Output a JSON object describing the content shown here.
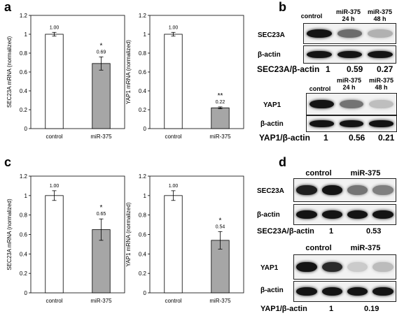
{
  "panel_letters": {
    "a": "a",
    "b": "b",
    "c": "c",
    "d": "d"
  },
  "chart_data": [
    {
      "id": "a1",
      "type": "bar",
      "categories": [
        "control",
        "miR-375"
      ],
      "values": [
        1.0,
        0.69
      ],
      "errors": [
        0.02,
        0.07
      ],
      "value_labels": [
        "1.00",
        "0.69"
      ],
      "sig": [
        "",
        "*"
      ],
      "ylabel": "SEC23A mRNA (normalized)",
      "ylim": [
        0,
        1.2
      ],
      "yticks": [
        "0",
        "0.2",
        "0.4",
        "0.6",
        "0.8",
        "1",
        "1.2"
      ],
      "colors": [
        "#ffffff",
        "#a6a6a6"
      ]
    },
    {
      "id": "a2",
      "type": "bar",
      "categories": [
        "control",
        "miR-375"
      ],
      "values": [
        1.0,
        0.22
      ],
      "errors": [
        0.02,
        0.01
      ],
      "value_labels": [
        "1.00",
        "0.22"
      ],
      "sig": [
        "",
        "**"
      ],
      "ylabel": "YAP1 mRNA (normalized)",
      "ylim": [
        0,
        1.2
      ],
      "yticks": [
        "0",
        "0.2",
        "0.4",
        "0.6",
        "0.8",
        "1",
        "1.2"
      ],
      "colors": [
        "#ffffff",
        "#a6a6a6"
      ]
    },
    {
      "id": "c1",
      "type": "bar",
      "categories": [
        "control",
        "miR-375"
      ],
      "values": [
        1.0,
        0.65
      ],
      "errors": [
        0.05,
        0.11
      ],
      "value_labels": [
        "1.00",
        "0.65"
      ],
      "sig": [
        "",
        "*"
      ],
      "ylabel": "SEC23A mRNA (normalized)",
      "ylim": [
        0,
        1.2
      ],
      "yticks": [
        "0",
        "0.2",
        "0.4",
        "0.6",
        "0.8",
        "1",
        "1.2"
      ],
      "colors": [
        "#ffffff",
        "#a6a6a6"
      ]
    },
    {
      "id": "c2",
      "type": "bar",
      "categories": [
        "control",
        "miR-375"
      ],
      "values": [
        1.0,
        0.54
      ],
      "errors": [
        0.05,
        0.09
      ],
      "value_labels": [
        "1.00",
        "0.54"
      ],
      "sig": [
        "",
        "*"
      ],
      "ylabel": "YAP1 mRNA (normalized)",
      "ylim": [
        0,
        1.2
      ],
      "yticks": [
        "0",
        "0.2",
        "0.4",
        "0.6",
        "0.8",
        "1",
        "1.2"
      ],
      "colors": [
        "#ffffff",
        "#a6a6a6"
      ]
    }
  ],
  "blot_b": {
    "top_headers": [
      "control",
      "miR-375\n24 h",
      "miR-375\n48 h"
    ],
    "sec23a_label": "SEC23A",
    "actin_label": "β-actin",
    "sec23a_ratio_label": "SEC23A/β-actin",
    "sec23a_ratios": [
      "1",
      "0.59",
      "0.27"
    ],
    "yap1_headers": [
      "control",
      "miR-375\n24 h",
      "miR-375\n48 h"
    ],
    "yap1_label": "YAP1",
    "actin_label_2": "β-actin",
    "yap1_ratio_label": "YAP1/β-actin",
    "yap1_ratios": [
      "1",
      "0.56",
      "0.21"
    ],
    "sec23a_intensity": [
      1.0,
      0.59,
      0.27
    ],
    "yap1_intensity": [
      1.0,
      0.56,
      0.21
    ]
  },
  "blot_d": {
    "headers": [
      "control",
      "miR-375"
    ],
    "sec23a_label": "SEC23A",
    "actin_label": "β-actin",
    "sec23a_ratio_label": "SEC23A/β-actin",
    "sec23a_ratios": [
      "1",
      "0.53"
    ],
    "headers_2": [
      "control",
      "miR-375"
    ],
    "yap1_label": "YAP1",
    "actin_label_2": "β-actin",
    "yap1_ratio_label": "YAP1/β-actin",
    "yap1_ratios": [
      "1",
      "0.19"
    ],
    "sec23a_intensity": [
      0.95,
      1.0,
      0.55,
      0.5
    ],
    "yap1_intensity": [
      1.0,
      0.9,
      0.15,
      0.22
    ]
  }
}
